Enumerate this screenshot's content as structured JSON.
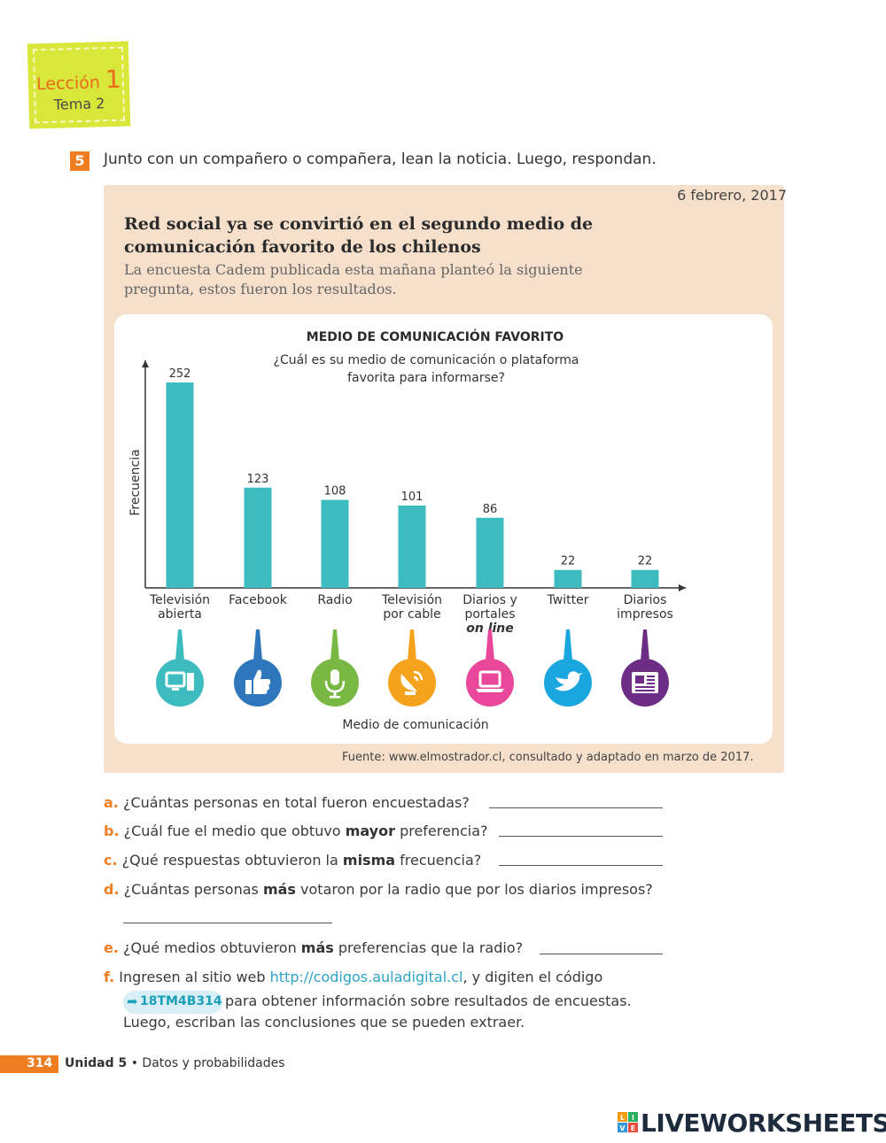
{
  "lesson": {
    "label": "Lección",
    "number": "1",
    "topic": "Tema 2"
  },
  "exercise": {
    "number": "5",
    "instruction": "Junto con un compañero o compañera, lean la noticia. Luego, respondan."
  },
  "news": {
    "date": "6 febrero, 2017",
    "headline_line1": "Red social ya se convirtió en el segundo medio de",
    "headline_line2": "comunicación favorito de los chilenos",
    "lede_line1": "La encuesta Cadem publicada esta mañana planteó la siguiente",
    "lede_line2": "pregunta, estos fueron los resultados.",
    "source": "Fuente: www.elmostrador.cl, consultado y adaptado en marzo de 2017."
  },
  "chart_data": {
    "type": "bar",
    "title": "MEDIO DE COMUNICACIÓN FAVORITO",
    "subtitle_line1": "¿Cuál es su medio de comunicación o plataforma",
    "subtitle_line2": "favorita para informarse?",
    "ylabel": "Frecuencia",
    "xlabel": "Medio de comunicación",
    "ylim": [
      0,
      270
    ],
    "bar_color": "#3dbcc0",
    "categories": [
      {
        "line1": "Televisión",
        "line2": "abierta",
        "line3": "",
        "icon": "tv-icon",
        "icon_color": "#3dbcc0"
      },
      {
        "line1": "Facebook",
        "line2": "",
        "line3": "",
        "icon": "thumbs-up-icon",
        "icon_color": "#2f77bc"
      },
      {
        "line1": "Radio",
        "line2": "",
        "line3": "",
        "icon": "microphone-icon",
        "icon_color": "#78b843"
      },
      {
        "line1": "Televisión",
        "line2": "por cable",
        "line3": "",
        "icon": "satellite-dish-icon",
        "icon_color": "#f5a31c"
      },
      {
        "line1": "Diarios y",
        "line2": "portales",
        "line3": "on line",
        "icon": "laptop-icon",
        "icon_color": "#e8479a"
      },
      {
        "line1": "Twitter",
        "line2": "",
        "line3": "",
        "icon": "bird-icon",
        "icon_color": "#1aa7e0"
      },
      {
        "line1": "Diarios",
        "line2": "impresos",
        "line3": "",
        "icon": "newspaper-icon",
        "icon_color": "#6d2d86"
      }
    ],
    "values": [
      252,
      123,
      108,
      101,
      86,
      22,
      22
    ]
  },
  "questions": {
    "a": {
      "letter": "a.",
      "text": "¿Cuántas personas en total fueron encuestadas?"
    },
    "b": {
      "letter": "b.",
      "pre": "¿Cuál fue el medio que obtuvo ",
      "bold": "mayor",
      "post": " preferencia?"
    },
    "c": {
      "letter": "c.",
      "pre": "¿Qué respuestas obtuvieron la ",
      "bold": "misma",
      "post": " frecuencia?"
    },
    "d": {
      "letter": "d.",
      "pre": "¿Cuántas personas ",
      "bold": "más",
      "post": " votaron por la radio que por los diarios impresos?"
    },
    "e": {
      "letter": "e.",
      "pre": "¿Qué medios obtuvieron ",
      "bold": "más",
      "post": " preferencias que la radio?"
    },
    "f": {
      "letter": "f.",
      "pre": "Ingresen al sitio web ",
      "link": "http://codigos.auladigital.cl",
      "post": ", y digiten el código",
      "code": "18TM4B314",
      "line2": "para obtener información sobre resultados de encuestas.",
      "line3": "Luego, escriban las conclusiones que se pueden extraer."
    }
  },
  "footer": {
    "page_number": "314",
    "unit": "Unidad 5",
    "separator": " • ",
    "topic": "Datos y probabilidades"
  },
  "brand": {
    "name": "LIVEWORKSHEETS",
    "logo_letters": [
      "L",
      "I",
      "V",
      "E"
    ]
  }
}
